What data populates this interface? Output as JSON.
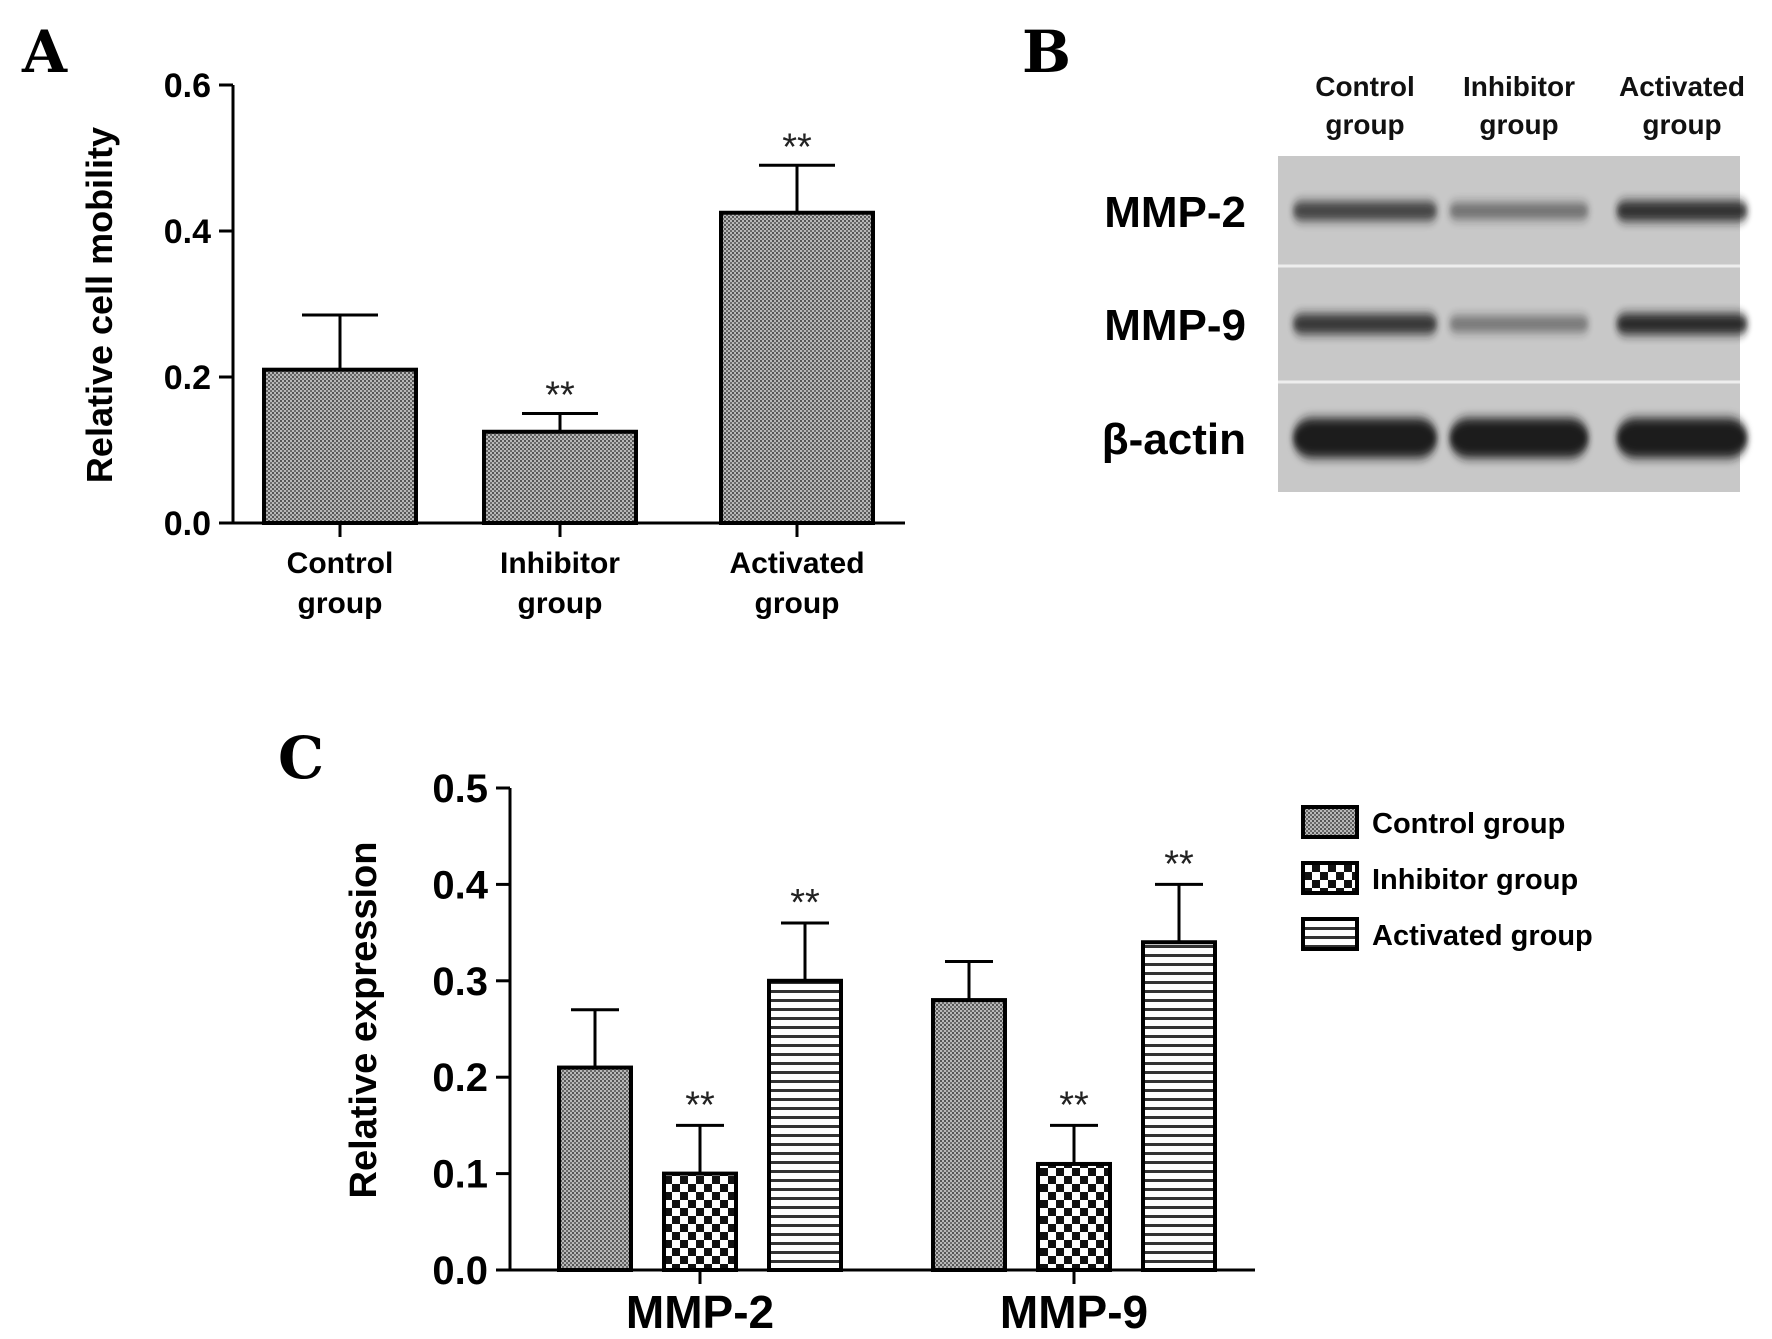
{
  "panels": {
    "a": {
      "letter": "A"
    },
    "b": {
      "letter": "B"
    },
    "c": {
      "letter": "C"
    }
  },
  "colors": {
    "bar_outline": "#000000",
    "grey_fill": "#a0a0a0",
    "blot_background": "#c8c8c8",
    "band": "#1a1a1a"
  },
  "chart_data": [
    {
      "panel": "A",
      "type": "bar",
      "ylabel": "Relative cell mobility",
      "xlabel": "",
      "ylim": [
        0,
        0.6
      ],
      "yticks": [
        "0.0",
        "0.2",
        "0.4",
        "0.6"
      ],
      "categories": [
        [
          "Control",
          "group"
        ],
        [
          "Inhibitor",
          "group"
        ],
        [
          "Activated",
          "group"
        ]
      ],
      "values": [
        0.21,
        0.125,
        0.425
      ],
      "errors": [
        0.075,
        0.025,
        0.065
      ],
      "significance": [
        "",
        "**",
        "**"
      ],
      "patterns": [
        "dots",
        "dots",
        "dots"
      ],
      "grid": false,
      "legend": "none"
    },
    {
      "panel": "C",
      "type": "bar",
      "ylabel": "Relative expression",
      "xlabel": "",
      "ylim": [
        0,
        0.5
      ],
      "yticks": [
        "0.0",
        "0.1",
        "0.2",
        "0.3",
        "0.4",
        "0.5"
      ],
      "categories": [
        "MMP-2",
        "MMP-9"
      ],
      "series": [
        {
          "name": "Control group",
          "values": [
            0.21,
            0.28
          ],
          "errors": [
            0.06,
            0.04
          ],
          "significance": [
            "",
            ""
          ],
          "pattern": "dots"
        },
        {
          "name": "Inhibitor group",
          "values": [
            0.1,
            0.11
          ],
          "errors": [
            0.05,
            0.04
          ],
          "significance": [
            "**",
            "**"
          ],
          "pattern": "checker"
        },
        {
          "name": "Activated group",
          "values": [
            0.3,
            0.34
          ],
          "errors": [
            0.06,
            0.06
          ],
          "significance": [
            "**",
            "**"
          ],
          "pattern": "hlines"
        }
      ],
      "grid": false,
      "legend": "right"
    }
  ],
  "blot": {
    "lanes": [
      [
        "Control",
        "group"
      ],
      [
        "Inhibitor",
        "group"
      ],
      [
        "Activated",
        "group"
      ]
    ],
    "rows": [
      {
        "label": "MMP-2",
        "intensity": [
          0.7,
          0.35,
          0.85
        ]
      },
      {
        "label": "MMP-9",
        "intensity": [
          0.8,
          0.3,
          0.9
        ]
      },
      {
        "label": "β-actin",
        "intensity": [
          1.0,
          1.0,
          1.0
        ]
      }
    ]
  }
}
